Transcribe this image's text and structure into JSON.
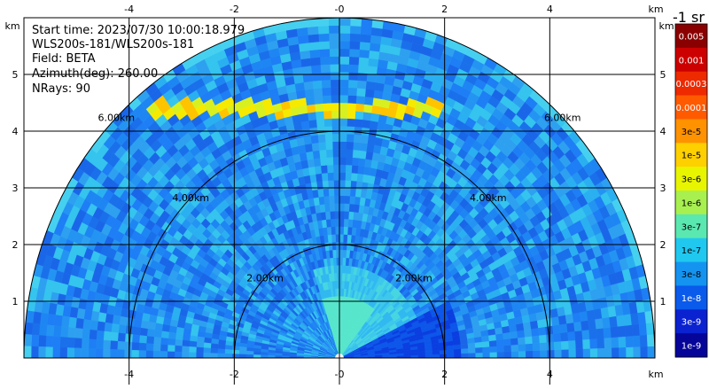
{
  "info": {
    "start_time": "Start time: 2023/07/30 10:00:18.979",
    "instrument": "WLS200s-181/WLS200s-181",
    "field": "Field: BETA",
    "azimuth": "Azimuth(deg): 260.00",
    "nrays": "NRays: 90"
  },
  "chart_data": {
    "type": "heatmap",
    "subtype": "rhi-scan-semicircle",
    "xlim": [
      -6.0,
      6.0
    ],
    "ylim": [
      0,
      6.0
    ],
    "x_ticks": [
      -4,
      -2,
      0,
      2,
      4
    ],
    "x_tick_labels": [
      "-4",
      "-2",
      "-0",
      "2",
      "4"
    ],
    "y_ticks": [
      1,
      2,
      3,
      4,
      5
    ],
    "y_tick_labels": [
      "1",
      "2",
      "3",
      "4",
      "5"
    ],
    "x_unit": "km",
    "y_unit": "km",
    "grid": true,
    "range_rings": [
      2,
      4,
      6
    ],
    "range_ring_labels": [
      "2.00km",
      "4.00km",
      "6.00km"
    ],
    "max_range_km": 6.0,
    "features": {
      "aerosol_layer_height_km": 4.4,
      "aerosol_layer_x_range_km": [
        -3.6,
        2.0
      ]
    },
    "colorbar": {
      "unit_label": "-1 sr",
      "labels": [
        "0.005",
        "0.001",
        "0.0003",
        "0.0001",
        "3e-5",
        "1e-5",
        "3e-6",
        "1e-6",
        "3e-7",
        "1e-7",
        "3e-8",
        "1e-8",
        "3e-9",
        "1e-9"
      ],
      "colors": [
        "#8a0000",
        "#cc0000",
        "#ee2a00",
        "#ff5a00",
        "#ff9200",
        "#ffd000",
        "#e8f500",
        "#a8f050",
        "#5ae8b0",
        "#20c8f0",
        "#1494f0",
        "#0a5aec",
        "#0a22d0",
        "#06059a"
      ]
    }
  }
}
